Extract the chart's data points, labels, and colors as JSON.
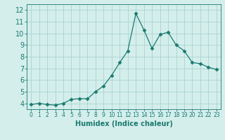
{
  "x": [
    0,
    1,
    2,
    3,
    4,
    5,
    6,
    7,
    8,
    9,
    10,
    11,
    12,
    13,
    14,
    15,
    16,
    17,
    18,
    19,
    20,
    21,
    22,
    23
  ],
  "y": [
    3.9,
    4.0,
    3.9,
    3.85,
    4.0,
    4.35,
    4.4,
    4.4,
    5.0,
    5.5,
    6.4,
    7.5,
    8.5,
    11.7,
    10.3,
    8.7,
    9.9,
    10.1,
    9.0,
    8.5,
    7.5,
    7.4,
    7.1,
    6.9
  ],
  "line_color": "#1a7a6e",
  "marker": "D",
  "marker_size": 2.5,
  "bg_color": "#d4eeec",
  "grid_color": "#aad4d0",
  "xlabel": "Humidex (Indice chaleur)",
  "xlim": [
    -0.5,
    23.5
  ],
  "ylim": [
    3.5,
    12.5
  ],
  "yticks": [
    4,
    5,
    6,
    7,
    8,
    9,
    10,
    11,
    12
  ],
  "xticks": [
    0,
    1,
    2,
    3,
    4,
    5,
    6,
    7,
    8,
    9,
    10,
    11,
    12,
    13,
    14,
    15,
    16,
    17,
    18,
    19,
    20,
    21,
    22,
    23
  ],
  "tick_color": "#1a7a6e",
  "label_color": "#1a7a6e",
  "xlabel_fontsize": 7,
  "ytick_fontsize": 7,
  "xtick_fontsize": 5.5
}
